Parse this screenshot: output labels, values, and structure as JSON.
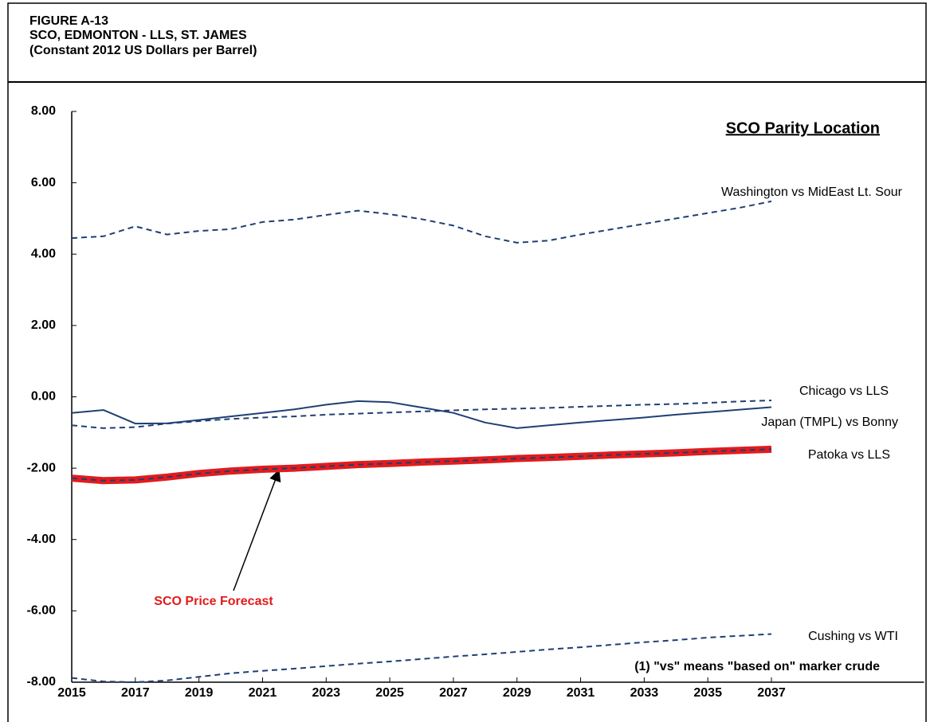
{
  "chart_data": {
    "type": "line",
    "title": [
      "FIGURE A-13",
      "SCO, EDMONTON - LLS, ST. JAMES",
      "(Constant 2012 US Dollars per Barrel)"
    ],
    "legend_title": "SCO Parity Location",
    "note": "(1) \"vs\" means \"based on\" marker crude",
    "x": [
      2015,
      2016,
      2017,
      2018,
      2019,
      2020,
      2021,
      2022,
      2023,
      2024,
      2025,
      2026,
      2027,
      2028,
      2029,
      2030,
      2031,
      2032,
      2033,
      2034,
      2035,
      2036,
      2037
    ],
    "xlim": [
      2015,
      2041.8
    ],
    "xticks": [
      2015,
      2017,
      2019,
      2021,
      2023,
      2025,
      2027,
      2029,
      2031,
      2033,
      2035,
      2037
    ],
    "ylim": [
      -8,
      8
    ],
    "yticks": [
      {
        "value": -8,
        "label": "-8.00"
      },
      {
        "value": -6,
        "label": "-6.00"
      },
      {
        "value": -4,
        "label": "-4.00"
      },
      {
        "value": -2,
        "label": "-2.00"
      },
      {
        "value": 0,
        "label": "0.00"
      },
      {
        "value": 2,
        "label": "2.00"
      },
      {
        "value": 4,
        "label": "4.00"
      },
      {
        "value": 6,
        "label": "6.00"
      },
      {
        "value": 8,
        "label": "8.00"
      }
    ],
    "series": [
      {
        "name": "Washington vs MidEast Lt. Sour",
        "color": "#1f3f73",
        "style": "dashed",
        "values": [
          4.45,
          4.5,
          4.78,
          4.55,
          4.65,
          4.7,
          4.9,
          4.97,
          5.1,
          5.22,
          5.12,
          4.98,
          4.8,
          4.5,
          4.32,
          4.38,
          4.55,
          4.7,
          4.85,
          5.0,
          5.15,
          5.3,
          5.48
        ]
      },
      {
        "name": "Chicago vs LLS",
        "color": "#1f3f73",
        "style": "dashed",
        "values": [
          -0.8,
          -0.88,
          -0.85,
          -0.75,
          -0.68,
          -0.62,
          -0.58,
          -0.55,
          -0.5,
          -0.47,
          -0.44,
          -0.41,
          -0.38,
          -0.35,
          -0.33,
          -0.31,
          -0.28,
          -0.25,
          -0.22,
          -0.2,
          -0.17,
          -0.13,
          -0.1
        ]
      },
      {
        "name": "Japan (TMPL) vs Bonny",
        "color": "#1f3f73",
        "style": "solid",
        "values": [
          -0.45,
          -0.37,
          -0.75,
          -0.74,
          -0.65,
          -0.55,
          -0.45,
          -0.35,
          -0.22,
          -0.12,
          -0.15,
          -0.3,
          -0.45,
          -0.72,
          -0.88,
          -0.8,
          -0.72,
          -0.65,
          -0.58,
          -0.5,
          -0.43,
          -0.36,
          -0.29
        ]
      },
      {
        "name": "SCO Price Forecast",
        "color": "#e31b1b",
        "style": "thick",
        "values": [
          -2.28,
          -2.35,
          -2.33,
          -2.25,
          -2.15,
          -2.08,
          -2.03,
          -2.0,
          -1.95,
          -1.9,
          -1.87,
          -1.83,
          -1.8,
          -1.77,
          -1.73,
          -1.7,
          -1.67,
          -1.63,
          -1.6,
          -1.57,
          -1.53,
          -1.5,
          -1.47
        ]
      },
      {
        "name": "Patoka vs LLS",
        "color": "#1f3f73",
        "style": "dashed",
        "values": [
          -2.28,
          -2.35,
          -2.33,
          -2.25,
          -2.15,
          -2.08,
          -2.03,
          -2.0,
          -1.95,
          -1.9,
          -1.87,
          -1.83,
          -1.8,
          -1.77,
          -1.73,
          -1.7,
          -1.67,
          -1.63,
          -1.6,
          -1.57,
          -1.53,
          -1.5,
          -1.47
        ]
      },
      {
        "name": "Cushing vs WTI",
        "color": "#1f3f73",
        "style": "dashed",
        "values": [
          -7.88,
          -7.98,
          -8.0,
          -7.95,
          -7.85,
          -7.75,
          -7.68,
          -7.62,
          -7.55,
          -7.48,
          -7.42,
          -7.35,
          -7.28,
          -7.22,
          -7.15,
          -7.08,
          -7.02,
          -6.95,
          -6.88,
          -6.82,
          -6.75,
          -6.7,
          -6.65
        ]
      }
    ]
  }
}
